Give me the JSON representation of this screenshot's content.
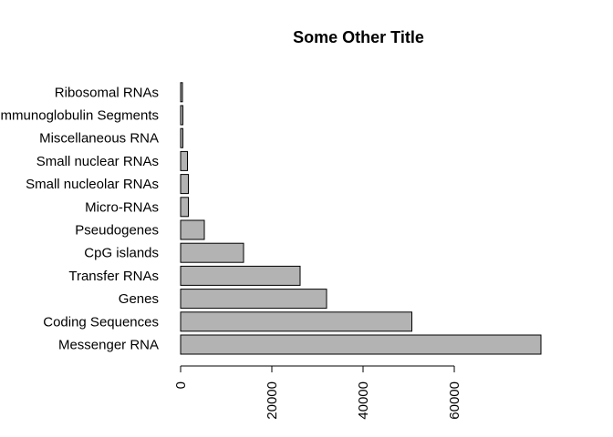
{
  "chart_data": {
    "type": "bar",
    "orientation": "horizontal",
    "title": "Some Other Title",
    "xlabel": "",
    "ylabel": "",
    "categories": [
      "Messenger RNA",
      "Coding Sequences",
      "Genes",
      "Transfer RNAs",
      "CpG islands",
      "Pseudogenes",
      "Micro-RNAs",
      "Small nucleolar RNAs",
      "Small nuclear RNAs",
      "Miscellaneous RNA",
      "Immunoglobulin Segments",
      "Ribosomal RNAs"
    ],
    "values": [
      79000,
      50700,
      32000,
      26200,
      13800,
      5200,
      1700,
      1700,
      1500,
      500,
      500,
      400
    ],
    "xlim": [
      0,
      80000
    ],
    "ticks": [
      0,
      20000,
      40000,
      60000
    ],
    "tick_labels": [
      "0",
      "20000",
      "40000",
      "60000"
    ],
    "bar_color": "#b3b3b3",
    "grid": false,
    "legend": "none"
  }
}
